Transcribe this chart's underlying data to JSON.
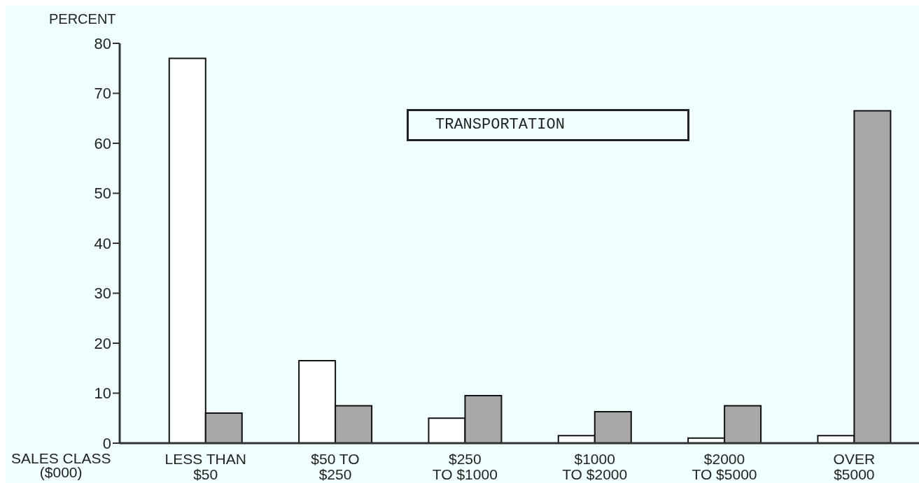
{
  "chart_data": {
    "type": "bar",
    "title": "TRANSPORTATION",
    "xlabel": "SALES CLASS\n($000)",
    "ylabel": "PERCENT",
    "categories": [
      "LESS THAN\n$50",
      "$50 TO\n$250",
      "$250\nTO $1000",
      "$1000\nTO $2000",
      "$2000\nTO $5000",
      "OVER\n$5000"
    ],
    "series": [
      {
        "color": "#ffffff",
        "values": [
          77,
          16.5,
          5,
          1.5,
          1,
          1.5
        ]
      },
      {
        "color": "#a8a8a8",
        "values": [
          6,
          7.5,
          9.5,
          6.3,
          7.5,
          66.5
        ]
      }
    ],
    "ylim": [
      0,
      80
    ],
    "yticks": [
      0,
      10,
      20,
      30,
      40,
      50,
      60,
      70,
      80
    ],
    "grid": false
  }
}
